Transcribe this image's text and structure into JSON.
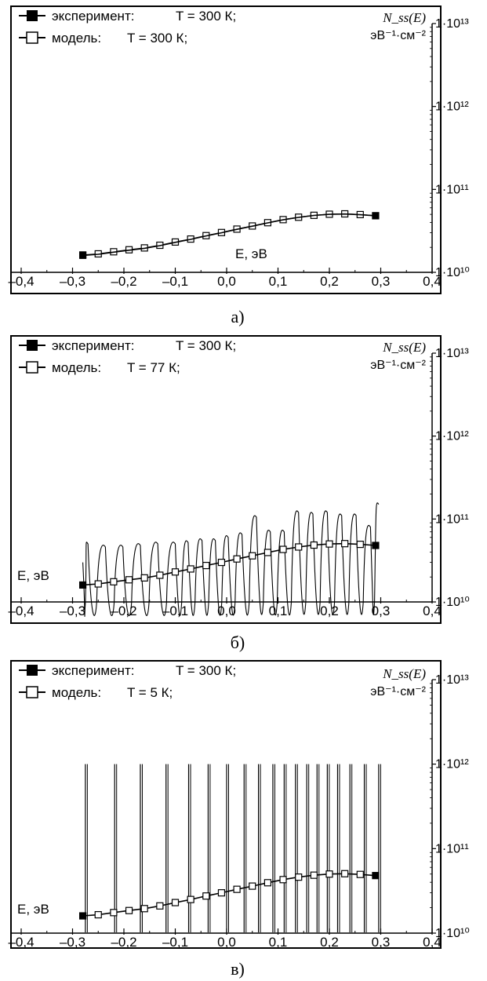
{
  "chart_data": [
    {
      "type": "line",
      "panel_label": "а)",
      "xlabel": "E, эВ",
      "ylabel": "N_ss(E)",
      "yunit": "эВ⁻¹·см⁻²",
      "xlim": [
        -0.4,
        0.4
      ],
      "ylim_log10": [
        10,
        13
      ],
      "yscale": "log",
      "x_ticks": [
        "–0,4",
        "–0,3",
        "–0,2",
        "–0,1",
        "0,0",
        "0,1",
        "0,2",
        "0,3",
        "0,4"
      ],
      "y_ticks": [
        "1·10¹⁰",
        "1·10¹¹",
        "1·10¹²",
        "1·10¹³"
      ],
      "legend": [
        {
          "label": "эксперимент: ",
          "temp": "T = 300 К;",
          "marker": "filled-square"
        },
        {
          "label": "модель: ",
          "temp": "T = 300 К;",
          "marker": "open-square"
        }
      ],
      "series": [
        {
          "name": "эксперимент: T = 300 К",
          "x": [
            -0.28,
            -0.25,
            -0.22,
            -0.19,
            -0.16,
            -0.13,
            -0.1,
            -0.07,
            -0.04,
            -0.01,
            0.02,
            0.05,
            0.08,
            0.11,
            0.14,
            0.17,
            0.2,
            0.23,
            0.26,
            0.29
          ],
          "y": [
            16000000000.0,
            16500000000.0,
            17500000000.0,
            18500000000.0,
            19500000000.0,
            21000000000.0,
            23000000000.0,
            25000000000.0,
            27500000000.0,
            30000000000.0,
            33000000000.0,
            36000000000.0,
            39500000000.0,
            43000000000.0,
            46000000000.0,
            48500000000.0,
            50000000000.0,
            50500000000.0,
            49500000000.0,
            48000000000.0
          ]
        },
        {
          "name": "модель: T = 300 К",
          "x": [
            -0.28,
            -0.25,
            -0.22,
            -0.19,
            -0.16,
            -0.13,
            -0.1,
            -0.07,
            -0.04,
            -0.01,
            0.02,
            0.05,
            0.08,
            0.11,
            0.14,
            0.17,
            0.2,
            0.23,
            0.26,
            0.29
          ],
          "y": [
            16200000000.0,
            16700000000.0,
            17700000000.0,
            18700000000.0,
            19700000000.0,
            21200000000.0,
            23200000000.0,
            25200000000.0,
            27700000000.0,
            30200000000.0,
            33200000000.0,
            36200000000.0,
            39700000000.0,
            43200000000.0,
            46200000000.0,
            48700000000.0,
            50200000000.0,
            50700000000.0,
            49700000000.0,
            48200000000.0
          ]
        }
      ]
    },
    {
      "type": "line",
      "panel_label": "б)",
      "xlabel": "E, эВ",
      "ylabel": "N_ss(E)",
      "yunit": "эВ⁻¹·см⁻²",
      "xlim": [
        -0.4,
        0.4
      ],
      "ylim_log10": [
        10,
        13
      ],
      "yscale": "log",
      "x_ticks": [
        "–0,4",
        "–0,3",
        "–0,2",
        "–0,1",
        "0,0",
        "0,1",
        "0,2",
        "0,3",
        "0,4"
      ],
      "y_ticks": [
        "1·10¹⁰",
        "1·10¹¹",
        "1·10¹²",
        "1·10¹³"
      ],
      "legend": [
        {
          "label": "эксперимент: ",
          "temp": "T = 300 К;",
          "marker": "filled-square"
        },
        {
          "label": "модель: ",
          "temp": "T = 77 К;",
          "marker": "open-square"
        }
      ],
      "series": [
        {
          "name": "эксперимент: T = 300 К",
          "x": [
            -0.28,
            -0.25,
            -0.22,
            -0.19,
            -0.16,
            -0.13,
            -0.1,
            -0.07,
            -0.04,
            -0.01,
            0.02,
            0.05,
            0.08,
            0.11,
            0.14,
            0.17,
            0.2,
            0.23,
            0.26,
            0.29
          ],
          "y": [
            16000000000.0,
            16500000000.0,
            17500000000.0,
            18500000000.0,
            19500000000.0,
            21000000000.0,
            23000000000.0,
            25000000000.0,
            27500000000.0,
            30000000000.0,
            33000000000.0,
            36000000000.0,
            39500000000.0,
            43000000000.0,
            46000000000.0,
            48500000000.0,
            50000000000.0,
            50500000000.0,
            49500000000.0,
            48000000000.0
          ]
        },
        {
          "name": "модель: T = 77 К",
          "peak_x": [
            -0.27,
            -0.236,
            -0.202,
            -0.168,
            -0.134,
            -0.1,
            -0.075,
            -0.048,
            -0.022,
            0.003,
            0.03,
            0.058,
            0.085,
            0.112,
            0.14,
            0.168,
            0.196,
            0.224,
            0.252,
            0.28,
            0.296
          ],
          "peak_y": [
            50000000000.0,
            46000000000.0,
            46000000000.0,
            48000000000.0,
            50000000000.0,
            50000000000.0,
            52000000000.0,
            55000000000.0,
            55000000000.0,
            60000000000.0,
            65000000000.0,
            105000000000.0,
            70000000000.0,
            70000000000.0,
            120000000000.0,
            115000000000.0,
            120000000000.0,
            110000000000.0,
            110000000000.0,
            80000000000.0,
            150000000000.0
          ],
          "min_y": 10000000000.0
        }
      ]
    },
    {
      "type": "line",
      "panel_label": "в)",
      "xlabel": "E, эВ",
      "ylabel": "N_ss(E)",
      "yunit": "эВ⁻¹·см⁻²",
      "xlim": [
        -0.4,
        0.4
      ],
      "ylim_log10": [
        10,
        13
      ],
      "yscale": "log",
      "x_ticks": [
        "–0,4",
        "–0,3",
        "–0,2",
        "–0,1",
        "0,0",
        "0,1",
        "0,2",
        "0,3",
        "0,4"
      ],
      "y_ticks": [
        "1·10¹⁰",
        "1·10¹¹",
        "1·10¹²",
        "1·10¹³"
      ],
      "legend": [
        {
          "label": "эксперимент: ",
          "temp": "T = 300 К;",
          "marker": "filled-square"
        },
        {
          "label": "модель: ",
          "temp": "T = 5 К;",
          "marker": "open-square"
        }
      ],
      "series": [
        {
          "name": "эксперимент: T = 300 К",
          "x": [
            -0.28,
            -0.25,
            -0.22,
            -0.19,
            -0.16,
            -0.13,
            -0.1,
            -0.07,
            -0.04,
            -0.01,
            0.02,
            0.05,
            0.08,
            0.11,
            0.14,
            0.17,
            0.2,
            0.23,
            0.26,
            0.29
          ],
          "y": [
            16000000000.0,
            16500000000.0,
            17500000000.0,
            18500000000.0,
            19500000000.0,
            21000000000.0,
            23000000000.0,
            25000000000.0,
            27500000000.0,
            30000000000.0,
            33000000000.0,
            36000000000.0,
            39500000000.0,
            43000000000.0,
            46000000000.0,
            48500000000.0,
            50000000000.0,
            50500000000.0,
            49500000000.0,
            48000000000.0
          ]
        },
        {
          "name": "модель: T = 5 К",
          "spike_x": [
            -0.275,
            -0.218,
            -0.168,
            -0.118,
            -0.074,
            -0.036,
            0.0,
            0.034,
            0.062,
            0.09,
            0.112,
            0.134,
            0.156,
            0.176,
            0.196,
            0.216,
            0.24,
            0.268,
            0.296
          ],
          "spike_y": 1000000000000.0,
          "min_y": 10000000000.0
        }
      ]
    }
  ]
}
